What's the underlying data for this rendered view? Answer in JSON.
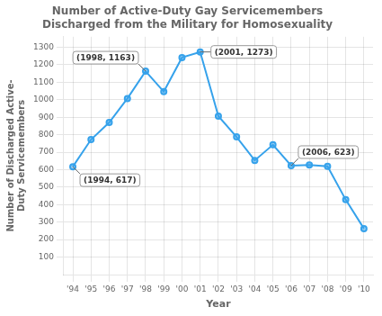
{
  "chart_data": {
    "type": "line",
    "title": "Number of Active-Duty Gay Servicemembers\nDischarged from the Military for Homosexuality",
    "xlabel": "Year",
    "ylabel": "Number of Discharged Active-\nDuty Servicemembers",
    "x": [
      1994,
      1995,
      1996,
      1997,
      1998,
      1999,
      2000,
      2001,
      2002,
      2003,
      2004,
      2005,
      2006,
      2007,
      2008,
      2009,
      2010
    ],
    "values": [
      617,
      772,
      870,
      1007,
      1163,
      1046,
      1241,
      1273,
      906,
      787,
      653,
      742,
      623,
      627,
      619,
      428,
      263
    ],
    "xlim": [
      1993.5,
      2010.5
    ],
    "xticks": [
      {
        "value": 1994,
        "label": "'94"
      },
      {
        "value": 1995,
        "label": "'95"
      },
      {
        "value": 1996,
        "label": "'96"
      },
      {
        "value": 1997,
        "label": "'97"
      },
      {
        "value": 1998,
        "label": "'98"
      },
      {
        "value": 1999,
        "label": "'99"
      },
      {
        "value": 2000,
        "label": "'00"
      },
      {
        "value": 2001,
        "label": "'01"
      },
      {
        "value": 2002,
        "label": "'02"
      },
      {
        "value": 2003,
        "label": "'03"
      },
      {
        "value": 2004,
        "label": "'04"
      },
      {
        "value": 2005,
        "label": "'05"
      },
      {
        "value": 2006,
        "label": "'06"
      },
      {
        "value": 2007,
        "label": "'07"
      },
      {
        "value": 2008,
        "label": "'08"
      },
      {
        "value": 2009,
        "label": "'09"
      },
      {
        "value": 2010,
        "label": "'10"
      }
    ],
    "ylim": [
      0,
      1360
    ],
    "yticks": [
      100,
      200,
      300,
      400,
      500,
      600,
      700,
      800,
      900,
      1000,
      1100,
      1200,
      1300
    ],
    "grid": true,
    "annotations": [
      {
        "x": 1994,
        "y": 617,
        "text": "(1994, 617)"
      },
      {
        "x": 1998,
        "y": 1163,
        "text": "(1998, 1163)"
      },
      {
        "x": 2001,
        "y": 1273,
        "text": "(2001, 1273)"
      },
      {
        "x": 2006,
        "y": 623,
        "text": "(2006, 623)"
      }
    ]
  }
}
